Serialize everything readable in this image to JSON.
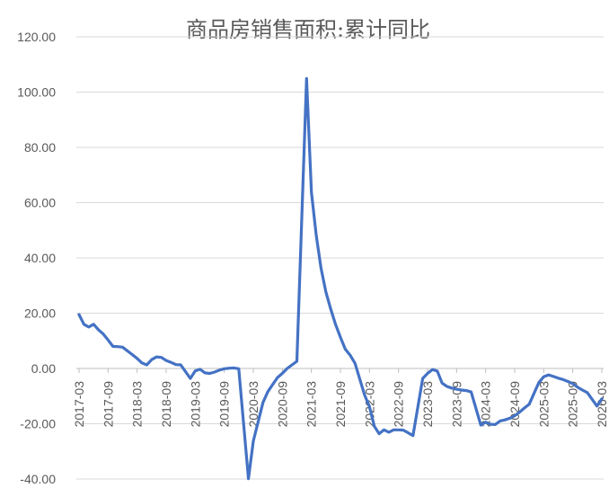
{
  "chart_data": {
    "type": "line",
    "title": "商品房销售面积:累计同比",
    "xlabel": "",
    "ylabel": "",
    "ylim": [
      -40,
      120
    ],
    "yticks": [
      "-40.00",
      "-20.00",
      "0.00",
      "20.00",
      "40.00",
      "60.00",
      "80.00",
      "100.00",
      "120.00"
    ],
    "xtick_labels": [
      "2017-03",
      "2017-09",
      "2018-03",
      "2018-09",
      "2019-03",
      "2019-09",
      "2020-03",
      "2020-09",
      "2021-03",
      "2021-09",
      "2022-03",
      "2022-09",
      "2023-03",
      "2023-09",
      "2024-03",
      "2024-09",
      "2025-03",
      "2025-09",
      "2026-03"
    ],
    "grid": true,
    "legend": "none",
    "line_color": "#4472c4",
    "series": [
      {
        "x": [
          "2017-03",
          "2017-04",
          "2017-05",
          "2017-06",
          "2017-07",
          "2017-08",
          "2017-09",
          "2017-10",
          "2017-11",
          "2017-12",
          "2018-02",
          "2018-03",
          "2018-04",
          "2018-05",
          "2018-06",
          "2018-07",
          "2018-08",
          "2018-09",
          "2018-10",
          "2018-11",
          "2018-12",
          "2019-02",
          "2019-03",
          "2019-04",
          "2019-05",
          "2019-06",
          "2019-07",
          "2019-08",
          "2019-09",
          "2019-10",
          "2019-11",
          "2019-12",
          "2020-02",
          "2020-03",
          "2020-04",
          "2020-05",
          "2020-06",
          "2020-07",
          "2020-08",
          "2020-09",
          "2020-10",
          "2020-11",
          "2020-12",
          "2021-02",
          "2021-03",
          "2021-04",
          "2021-05",
          "2021-06",
          "2021-07",
          "2021-08",
          "2021-09",
          "2021-10",
          "2021-11",
          "2021-12",
          "2022-02",
          "2022-03",
          "2022-04",
          "2022-05",
          "2022-06",
          "2022-07",
          "2022-08",
          "2022-09",
          "2022-10",
          "2022-11",
          "2022-12",
          "2023-02",
          "2023-03",
          "2023-04",
          "2023-05",
          "2023-06",
          "2023-07",
          "2023-08",
          "2023-09",
          "2023-10",
          "2023-11",
          "2023-12",
          "2024-02",
          "2024-03",
          "2024-04",
          "2024-05",
          "2024-06",
          "2024-07",
          "2024-08",
          "2024-09",
          "2024-10",
          "2024-11",
          "2024-12",
          "2025-02",
          "2025-03",
          "2025-04",
          "2025-05",
          "2025-06",
          "2025-07",
          "2025-08",
          "2025-09",
          "2025-10",
          "2025-11",
          "2025-12",
          "2026-02",
          "2026-03"
        ],
        "values": [
          19.5,
          16.0,
          15.0,
          16.0,
          14.0,
          12.5,
          10.3,
          8.0,
          7.9,
          7.7,
          5.0,
          3.6,
          2.0,
          1.3,
          3.2,
          4.2,
          4.0,
          2.9,
          2.2,
          1.4,
          1.3,
          -3.6,
          -0.9,
          -0.3,
          -1.6,
          -1.8,
          -1.3,
          -0.6,
          -0.1,
          0.1,
          0.2,
          -0.1,
          -39.9,
          -26.3,
          -19.3,
          -12.3,
          -8.4,
          -5.8,
          -3.3,
          -1.8,
          0.0,
          1.3,
          2.6,
          104.9,
          63.8,
          48.1,
          36.3,
          27.7,
          21.5,
          15.9,
          11.3,
          7.0,
          4.8,
          1.9,
          -9.6,
          -13.8,
          -20.9,
          -23.6,
          -22.2,
          -23.1,
          -22.2,
          -22.2,
          -22.3,
          -23.3,
          -24.3,
          -3.6,
          -1.8,
          -0.4,
          -0.9,
          -5.3,
          -6.5,
          -7.1,
          -7.5,
          -7.8,
          -8.0,
          -8.5,
          -20.5,
          -19.4,
          -20.2,
          -20.3,
          -19.0,
          -18.6,
          -18.0,
          -17.1,
          -15.8,
          -14.3,
          -12.9,
          -5.1,
          -3.0,
          -2.3,
          -2.9,
          -3.5,
          -4.0,
          -4.7,
          -5.5,
          -6.8,
          -7.8,
          -8.7,
          -13.6,
          -11.0
        ]
      }
    ]
  }
}
